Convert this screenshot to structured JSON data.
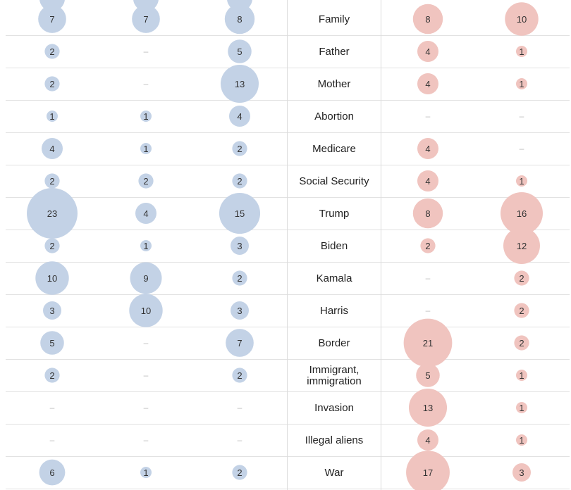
{
  "chart_data": {
    "type": "bubble-table",
    "columns": [
      {
        "side": "dem"
      },
      {
        "side": "dem"
      },
      {
        "side": "dem"
      },
      {
        "side": "term"
      },
      {
        "side": "rep"
      },
      {
        "side": "rep"
      }
    ],
    "colors": {
      "dem": "#c3d2e6",
      "rep": "#f0c4bf",
      "dem_text": "#555",
      "rep_text": "#555"
    },
    "rows": [
      {
        "term": "Family",
        "dem": [
          7,
          7,
          8
        ],
        "rep": [
          8,
          10
        ]
      },
      {
        "term": "Father",
        "dem": [
          2,
          null,
          5
        ],
        "rep": [
          4,
          1
        ]
      },
      {
        "term": "Mother",
        "dem": [
          2,
          null,
          13
        ],
        "rep": [
          4,
          1
        ]
      },
      {
        "term": "Abortion",
        "dem": [
          1,
          1,
          4
        ],
        "rep": [
          null,
          null
        ]
      },
      {
        "term": "Medicare",
        "dem": [
          4,
          1,
          2
        ],
        "rep": [
          4,
          null
        ]
      },
      {
        "term": "Social Security",
        "dem": [
          2,
          2,
          2
        ],
        "rep": [
          4,
          1
        ]
      },
      {
        "term": "Trump",
        "dem": [
          23,
          4,
          15
        ],
        "rep": [
          8,
          16
        ]
      },
      {
        "term": "Biden",
        "dem": [
          2,
          1,
          3
        ],
        "rep": [
          2,
          12
        ]
      },
      {
        "term": "Kamala",
        "dem": [
          10,
          9,
          2
        ],
        "rep": [
          null,
          2
        ]
      },
      {
        "term": "Harris",
        "dem": [
          3,
          10,
          3
        ],
        "rep": [
          null,
          2
        ]
      },
      {
        "term": "Border",
        "dem": [
          5,
          null,
          7
        ],
        "rep": [
          21,
          2
        ]
      },
      {
        "term": "Immigrant, immigration",
        "dem": [
          2,
          null,
          2
        ],
        "rep": [
          5,
          1
        ]
      },
      {
        "term": "Invasion",
        "dem": [
          null,
          null,
          null
        ],
        "rep": [
          13,
          1
        ]
      },
      {
        "term": "Illegal aliens",
        "dem": [
          null,
          null,
          null
        ],
        "rep": [
          4,
          1
        ]
      },
      {
        "term": "War",
        "dem": [
          6,
          1,
          2
        ],
        "rep": [
          17,
          3
        ]
      }
    ],
    "missing_symbol": "–"
  }
}
